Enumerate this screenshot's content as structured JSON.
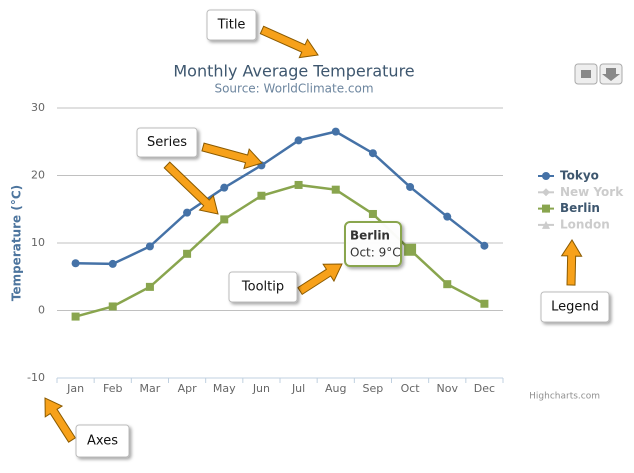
{
  "chart_data": {
    "type": "line",
    "title": "Monthly Average Temperature",
    "subtitle": "Source: WorldClimate.com",
    "y_axis_label": "Temperature (°C)",
    "categories": [
      "Jan",
      "Feb",
      "Mar",
      "Apr",
      "May",
      "Jun",
      "Jul",
      "Aug",
      "Sep",
      "Oct",
      "Nov",
      "Dec"
    ],
    "series": [
      {
        "name": "Tokyo",
        "color": "#4572a7",
        "marker": "circle",
        "visible": true,
        "values": [
          7.0,
          6.9,
          9.5,
          14.5,
          18.2,
          21.5,
          25.2,
          26.5,
          23.3,
          18.3,
          13.9,
          9.6
        ]
      },
      {
        "name": "New York",
        "color": "#aa4643",
        "marker": "diamond",
        "visible": false
      },
      {
        "name": "Berlin",
        "color": "#89a54e",
        "marker": "square",
        "visible": true,
        "values": [
          -0.9,
          0.6,
          3.5,
          8.4,
          13.5,
          17.0,
          18.6,
          17.9,
          14.3,
          9.0,
          3.9,
          1.0
        ]
      },
      {
        "name": "London",
        "color": "#80699b",
        "marker": "triangle",
        "visible": false
      }
    ],
    "ylim": [
      -10,
      30
    ],
    "yticks": [
      -10,
      0,
      10,
      20,
      30
    ],
    "grid": true,
    "legend": "right",
    "tooltip": {
      "series": "Berlin",
      "text": "Oct: 9°C"
    },
    "credits": "Highcharts.com",
    "annotations": [
      "Title",
      "Series",
      "Tooltip",
      "Legend",
      "Axes"
    ]
  }
}
